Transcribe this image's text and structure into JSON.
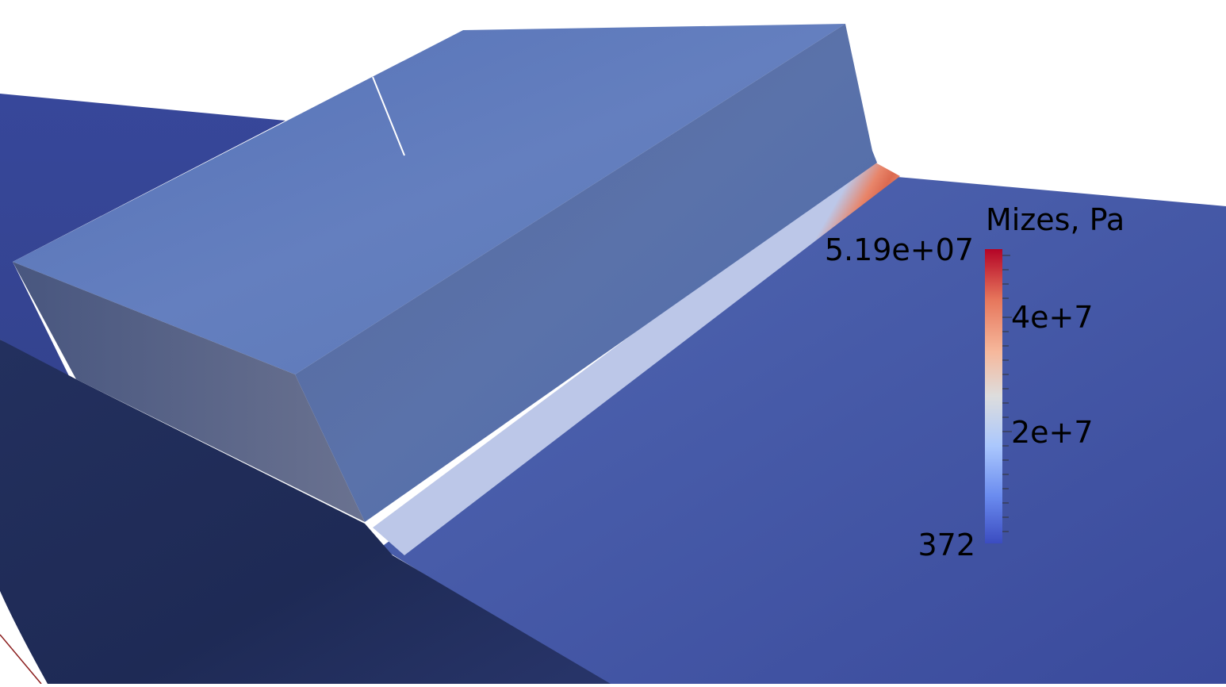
{
  "scalar_bar": {
    "title": "Mizes, Pa",
    "max_label": "5.19e+07",
    "min_label": "372",
    "tick_labels": [
      "4e+7",
      "2e+7"
    ],
    "colormap": [
      "#3b4cc0",
      "#6a8bef",
      "#aac7fd",
      "#dddddd",
      "#f6b89c",
      "#e6755b",
      "#b40426"
    ]
  },
  "scene": {
    "background": "#ffffff",
    "stress_band_color": "#e0664c",
    "base_color": "#3e4ea0",
    "block_top_color": "#5c78b8",
    "block_front_color": "#5570a8"
  }
}
